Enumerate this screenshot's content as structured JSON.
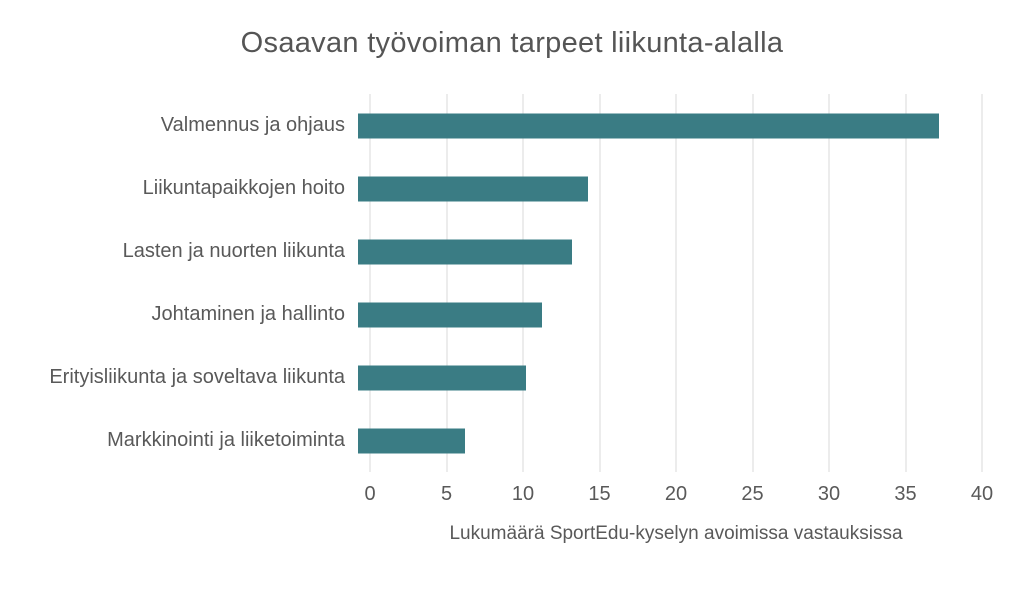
{
  "chart_data": {
    "type": "bar",
    "orientation": "horizontal",
    "title": "Osaavan työvoiman tarpeet liikunta-alalla",
    "categories": [
      "Valmennus ja ohjaus",
      "Liikuntapaikkojen hoito",
      "Lasten ja nuorten liikunta",
      "Johtaminen ja hallinto",
      "Erityisliikunta ja soveltava liikunta",
      "Markkinointi ja liiketoiminta"
    ],
    "values": [
      38,
      15,
      14,
      12,
      11,
      7
    ],
    "xlabel": "Lukumäärä SportEdu-kyselyn avoimissa vastauksissa",
    "ylabel": "",
    "xlim": [
      0,
      40
    ],
    "ticks": [
      0,
      5,
      10,
      15,
      20,
      25,
      30,
      35,
      40
    ],
    "tick_labels": [
      "0",
      "5",
      "10",
      "15",
      "20",
      "25",
      "30",
      "35",
      "40"
    ],
    "grid": "vertical-only",
    "legend": "none",
    "colors": {
      "bar": "#3A7C84",
      "text": "#595959",
      "title": "#555555",
      "gridline": "#D9D9D9",
      "background": "#FFFFFF"
    }
  }
}
